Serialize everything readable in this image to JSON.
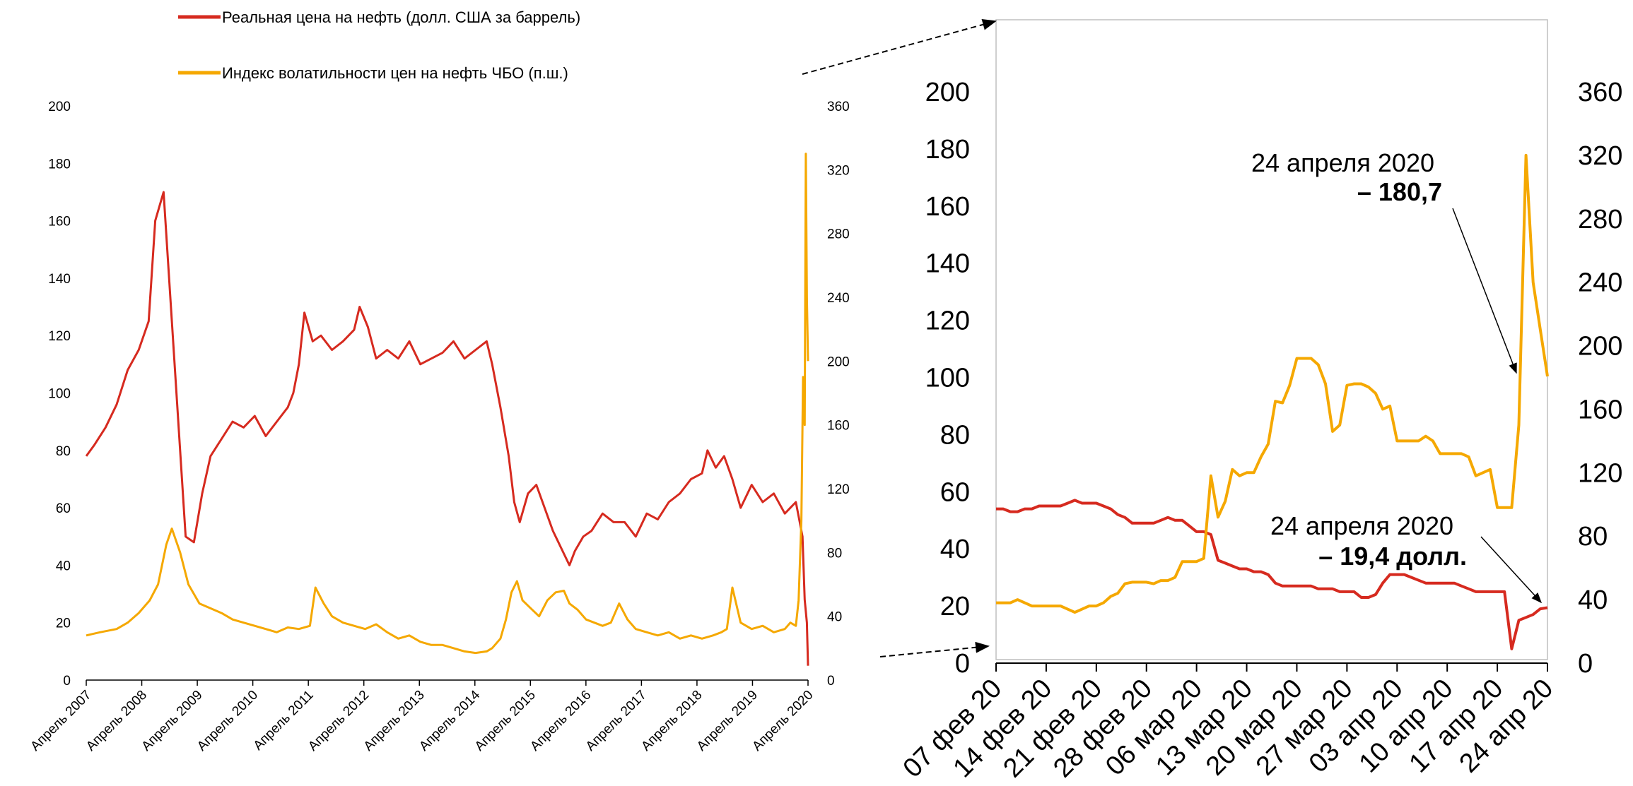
{
  "legend": {
    "oil_price": "Реальная цена на нефть (долл. США за баррель)",
    "vol_index": "Индекс волатильности цен на нефть ЧБО (п.ш.)"
  },
  "colors": {
    "oil": "#d62a1f",
    "vol": "#f5a800",
    "axis": "#000000",
    "frame": "#bfbfbf"
  },
  "annotations": {
    "vol_date": "24 апреля 2020",
    "vol_value": "– 180,7",
    "oil_date": "24 апреля 2020",
    "oil_value": "– 19,4 долл."
  },
  "chart_data": [
    {
      "type": "line",
      "title": "",
      "x_tick_labels": [
        "Апрель 2007",
        "Апрель 2008",
        "Апрель 2009",
        "Апрель 2010",
        "Апрель 2011",
        "Апрель 2012",
        "Апрель 2013",
        "Апрель 2014",
        "Апрель 2015",
        "Апрель 2016",
        "Апрель 2017",
        "Апрель 2018",
        "Апрель 2019",
        "Апрель 2020"
      ],
      "y_left_ticks": [
        0,
        20,
        40,
        60,
        80,
        100,
        120,
        140,
        160,
        180,
        200
      ],
      "y_right_ticks": [
        0,
        40,
        80,
        120,
        160,
        200,
        240,
        280,
        320,
        360
      ],
      "y_left_range": [
        0,
        200
      ],
      "y_right_range": [
        0,
        360
      ],
      "x_range": [
        2007.25,
        2020.32
      ],
      "series": [
        {
          "name": "Реальная цена на нефть (долл. США за баррель)",
          "axis": "left",
          "x": [
            2007.25,
            2007.4,
            2007.6,
            2007.8,
            2008.0,
            2008.2,
            2008.38,
            2008.5,
            2008.65,
            2008.8,
            2008.95,
            2009.05,
            2009.2,
            2009.35,
            2009.5,
            2009.7,
            2009.9,
            2010.1,
            2010.3,
            2010.5,
            2010.7,
            2010.9,
            2011.0,
            2011.1,
            2011.2,
            2011.35,
            2011.5,
            2011.7,
            2011.9,
            2012.1,
            2012.2,
            2012.35,
            2012.5,
            2012.7,
            2012.9,
            2013.1,
            2013.3,
            2013.5,
            2013.7,
            2013.9,
            2014.1,
            2014.3,
            2014.5,
            2014.6,
            2014.75,
            2014.9,
            2015.0,
            2015.1,
            2015.25,
            2015.4,
            2015.55,
            2015.7,
            2015.85,
            2016.0,
            2016.1,
            2016.25,
            2016.4,
            2016.6,
            2016.8,
            2017.0,
            2017.2,
            2017.4,
            2017.6,
            2017.8,
            2018.0,
            2018.2,
            2018.4,
            2018.5,
            2018.65,
            2018.8,
            2018.95,
            2019.1,
            2019.3,
            2019.5,
            2019.7,
            2019.9,
            2020.0,
            2020.1,
            2020.17,
            2020.22,
            2020.26,
            2020.3,
            2020.32
          ],
          "y": [
            78,
            82,
            88,
            96,
            108,
            115,
            125,
            160,
            170,
            125,
            80,
            50,
            48,
            65,
            78,
            84,
            90,
            88,
            92,
            85,
            90,
            95,
            100,
            110,
            128,
            118,
            120,
            115,
            118,
            122,
            130,
            123,
            112,
            115,
            112,
            118,
            110,
            112,
            114,
            118,
            112,
            115,
            118,
            110,
            95,
            78,
            62,
            55,
            65,
            68,
            60,
            52,
            46,
            40,
            45,
            50,
            52,
            58,
            55,
            55,
            50,
            58,
            56,
            62,
            65,
            70,
            72,
            80,
            74,
            78,
            70,
            60,
            68,
            62,
            65,
            58,
            60,
            62,
            55,
            50,
            28,
            20,
            5
          ]
        },
        {
          "name": "Индекс волатильности цен на нефть ЧБО (п.ш.)",
          "axis": "right",
          "x": [
            2007.25,
            2007.5,
            2007.8,
            2008.0,
            2008.2,
            2008.4,
            2008.55,
            2008.7,
            2008.8,
            2008.95,
            2009.1,
            2009.3,
            2009.5,
            2009.7,
            2009.9,
            2010.1,
            2010.3,
            2010.5,
            2010.7,
            2010.9,
            2011.1,
            2011.3,
            2011.4,
            2011.55,
            2011.7,
            2011.9,
            2012.1,
            2012.3,
            2012.5,
            2012.7,
            2012.9,
            2013.1,
            2013.3,
            2013.5,
            2013.7,
            2013.9,
            2014.1,
            2014.3,
            2014.5,
            2014.6,
            2014.75,
            2014.85,
            2014.95,
            2015.05,
            2015.15,
            2015.3,
            2015.45,
            2015.6,
            2015.75,
            2015.9,
            2016.0,
            2016.15,
            2016.3,
            2016.45,
            2016.6,
            2016.75,
            2016.9,
            2017.05,
            2017.2,
            2017.4,
            2017.6,
            2017.8,
            2018.0,
            2018.2,
            2018.4,
            2018.6,
            2018.75,
            2018.85,
            2018.95,
            2019.1,
            2019.3,
            2019.5,
            2019.7,
            2019.9,
            2020.0,
            2020.1,
            2020.15,
            2020.2,
            2020.23,
            2020.26,
            2020.28,
            2020.3,
            2020.32
          ],
          "y": [
            28,
            30,
            32,
            36,
            42,
            50,
            60,
            85,
            95,
            80,
            60,
            48,
            45,
            42,
            38,
            36,
            34,
            32,
            30,
            33,
            32,
            34,
            58,
            48,
            40,
            36,
            34,
            32,
            35,
            30,
            26,
            28,
            24,
            22,
            22,
            20,
            18,
            17,
            18,
            20,
            26,
            38,
            55,
            62,
            50,
            45,
            40,
            50,
            55,
            56,
            48,
            44,
            38,
            36,
            34,
            36,
            48,
            38,
            32,
            30,
            28,
            30,
            26,
            28,
            26,
            28,
            30,
            32,
            58,
            36,
            32,
            34,
            30,
            32,
            36,
            34,
            50,
            100,
            190,
            160,
            330,
            240,
            200
          ]
        }
      ]
    },
    {
      "type": "line",
      "title": "",
      "x_tick_labels": [
        "07 фев 20",
        "14 фев 20",
        "21 фев 20",
        "28 фев 20",
        "06 мар 20",
        "13 мар 20",
        "20 мар 20",
        "27 мар 20",
        "03 апр 20",
        "10 апр 20",
        "17 апр 20",
        "24 апр 20"
      ],
      "y_left_ticks": [
        0,
        20,
        40,
        60,
        80,
        100,
        120,
        140,
        160,
        180,
        200
      ],
      "y_right_ticks": [
        0,
        40,
        80,
        120,
        160,
        200,
        240,
        280,
        320,
        360
      ],
      "y_left_range": [
        0,
        200
      ],
      "y_right_range": [
        0,
        360
      ],
      "series": [
        {
          "name": "Реальная цена на нефть (долл. США за баррель)",
          "axis": "left",
          "day": [
            0,
            1,
            2,
            3,
            4,
            5,
            6,
            7,
            8,
            9,
            10,
            11,
            12,
            13,
            14,
            15,
            16,
            17,
            18,
            19,
            20,
            21,
            22,
            23,
            24,
            25,
            26,
            27,
            28,
            29,
            30,
            31,
            32,
            33,
            34,
            35,
            36,
            37,
            38,
            39,
            40,
            41,
            42,
            43,
            44,
            45,
            46,
            47,
            48,
            49,
            50,
            51,
            52,
            53,
            54,
            55,
            56,
            57,
            58,
            59,
            60,
            61,
            62,
            63,
            64,
            65,
            66,
            67,
            68,
            69,
            70,
            71,
            72,
            73,
            74,
            75,
            76,
            77
          ],
          "y": [
            54,
            54,
            53,
            53,
            54,
            54,
            55,
            55,
            55,
            55,
            56,
            57,
            56,
            56,
            56,
            55,
            54,
            52,
            51,
            49,
            49,
            49,
            49,
            50,
            51,
            50,
            50,
            48,
            46,
            46,
            45,
            36,
            35,
            34,
            33,
            33,
            32,
            32,
            31,
            28,
            27,
            27,
            27,
            27,
            27,
            26,
            26,
            26,
            25,
            25,
            25,
            23,
            23,
            24,
            28,
            31,
            31,
            31,
            30,
            29,
            28,
            28,
            28,
            28,
            28,
            27,
            26,
            25,
            25,
            25,
            25,
            25,
            5,
            15,
            16,
            17,
            19,
            19.4
          ]
        },
        {
          "name": "Индекс волатильности цен на нефть ЧБО (п.ш.)",
          "axis": "right",
          "day": [
            0,
            1,
            2,
            3,
            4,
            5,
            6,
            7,
            8,
            9,
            10,
            11,
            12,
            13,
            14,
            15,
            16,
            17,
            18,
            19,
            20,
            21,
            22,
            23,
            24,
            25,
            26,
            27,
            28,
            29,
            30,
            31,
            32,
            33,
            34,
            35,
            36,
            37,
            38,
            39,
            40,
            41,
            42,
            43,
            44,
            45,
            46,
            47,
            48,
            49,
            50,
            51,
            52,
            53,
            54,
            55,
            56,
            57,
            58,
            59,
            60,
            61,
            62,
            63,
            64,
            65,
            66,
            67,
            68,
            69,
            70,
            71,
            72,
            73,
            74,
            75,
            76,
            77
          ],
          "y": [
            38,
            38,
            38,
            40,
            38,
            36,
            36,
            36,
            36,
            36,
            34,
            32,
            34,
            36,
            36,
            38,
            42,
            44,
            50,
            51,
            51,
            51,
            50,
            52,
            52,
            54,
            64,
            64,
            64,
            66,
            118,
            92,
            102,
            122,
            118,
            120,
            120,
            130,
            138,
            165,
            164,
            175,
            192,
            192,
            192,
            188,
            176,
            146,
            150,
            175,
            176,
            176,
            174,
            170,
            160,
            162,
            140,
            140,
            140,
            140,
            143,
            140,
            132,
            132,
            132,
            132,
            130,
            118,
            120,
            122,
            98,
            98,
            98,
            150,
            320,
            240,
            210,
            180.7
          ]
        }
      ]
    }
  ]
}
